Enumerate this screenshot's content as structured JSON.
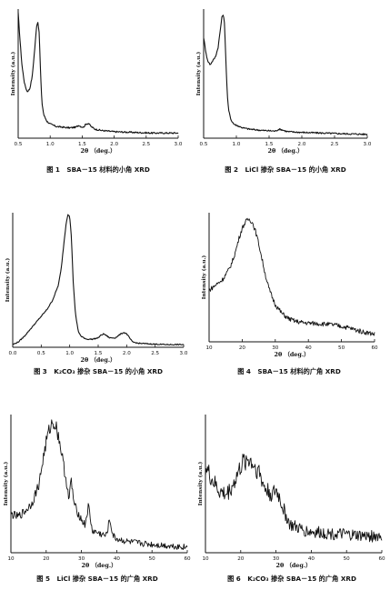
{
  "figures": [
    {
      "caption": "图 1   SBA－15 材料的小角 XRD",
      "chart_data": {
        "type": "line",
        "title": "",
        "xlabel": "2θ （deg.）",
        "ylabel": "Intensity (a.u.)",
        "xlim": [
          0.5,
          3.0
        ],
        "xticks": [
          "0.5",
          "1.0",
          "1.5",
          "2.0",
          "2.5",
          "3.0"
        ],
        "ylim": [
          0,
          1
        ],
        "grid": false,
        "series": [
          {
            "x": [
              0.5,
              0.53,
              0.56,
              0.6,
              0.64,
              0.68,
              0.72,
              0.76,
              0.79,
              0.81,
              0.83,
              0.85,
              0.87,
              0.9,
              0.95,
              1.0,
              1.1,
              1.2,
              1.3,
              1.4,
              1.45,
              1.48,
              1.52,
              1.56,
              1.6,
              1.64,
              1.7,
              1.8,
              2.0,
              2.3,
              2.6,
              3.0
            ],
            "y": [
              0.97,
              0.75,
              0.56,
              0.42,
              0.36,
              0.38,
              0.48,
              0.7,
              0.88,
              0.9,
              0.8,
              0.5,
              0.28,
              0.18,
              0.13,
              0.11,
              0.09,
              0.085,
              0.08,
              0.085,
              0.1,
              0.09,
              0.085,
              0.11,
              0.115,
              0.09,
              0.07,
              0.06,
              0.05,
              0.045,
              0.04,
              0.04
            ]
          }
        ]
      }
    },
    {
      "caption": "图 2   LiCl 掺杂 SBA－15 的小角 XRD",
      "chart_data": {
        "type": "line",
        "title": "",
        "xlabel": "2θ （deg.）",
        "ylabel": "Intensity (a.u.)",
        "xlim": [
          0.5,
          3.0
        ],
        "xticks": [
          "0.5",
          "1.0",
          "1.5",
          "2.0",
          "2.5",
          "3.0"
        ],
        "ylim": [
          0,
          1
        ],
        "grid": false,
        "series": [
          {
            "x": [
              0.5,
              0.53,
              0.56,
              0.6,
              0.64,
              0.68,
              0.72,
              0.75,
              0.78,
              0.8,
              0.82,
              0.84,
              0.86,
              0.88,
              0.92,
              0.96,
              1.0,
              1.1,
              1.2,
              1.4,
              1.6,
              1.65,
              1.7,
              1.75,
              1.8,
              2.0,
              2.3,
              2.6,
              3.0
            ],
            "y": [
              0.78,
              0.68,
              0.6,
              0.57,
              0.6,
              0.63,
              0.7,
              0.82,
              0.94,
              0.96,
              0.88,
              0.6,
              0.35,
              0.22,
              0.14,
              0.11,
              0.1,
              0.08,
              0.07,
              0.06,
              0.055,
              0.07,
              0.065,
              0.055,
              0.05,
              0.045,
              0.04,
              0.035,
              0.03
            ]
          }
        ]
      }
    },
    {
      "caption": "图 3   K₂CO₃ 掺杂 SBA－15 的小角 XRD",
      "chart_data": {
        "type": "line",
        "title": "",
        "xlabel": "2θ （deg.）",
        "ylabel": "Intensity (a.u.)",
        "xlim": [
          0.0,
          3.0
        ],
        "xticks": [
          "0.0",
          "0.5",
          "1.0",
          "1.5",
          "2.0",
          "2.5",
          "3.0"
        ],
        "ylim": [
          0,
          1
        ],
        "grid": false,
        "series": [
          {
            "x": [
              0.0,
              0.1,
              0.2,
              0.3,
              0.4,
              0.5,
              0.6,
              0.7,
              0.8,
              0.85,
              0.9,
              0.94,
              0.97,
              1.0,
              1.03,
              1.06,
              1.1,
              1.15,
              1.2,
              1.3,
              1.4,
              1.5,
              1.55,
              1.6,
              1.7,
              1.8,
              1.9,
              1.95,
              2.0,
              2.05,
              2.1,
              2.2,
              2.4,
              2.7,
              3.0
            ],
            "y": [
              0.02,
              0.04,
              0.08,
              0.13,
              0.18,
              0.23,
              0.28,
              0.35,
              0.46,
              0.58,
              0.78,
              0.93,
              0.99,
              0.97,
              0.82,
              0.5,
              0.25,
              0.12,
              0.08,
              0.06,
              0.06,
              0.07,
              0.09,
              0.1,
              0.07,
              0.07,
              0.1,
              0.11,
              0.1,
              0.07,
              0.04,
              0.03,
              0.025,
              0.02,
              0.02
            ]
          }
        ]
      }
    },
    {
      "caption": "图 4   SBA－15 材料的广角 XRD",
      "chart_data": {
        "type": "line",
        "title": "",
        "xlabel": "2θ （deg.）",
        "ylabel": "Intensity (a.u.)",
        "xlim": [
          10,
          60
        ],
        "xticks": [
          "10",
          "20",
          "30",
          "40",
          "50",
          "60"
        ],
        "ylim": [
          0,
          1
        ],
        "grid": false,
        "series": [
          {
            "x": [
              10,
              12,
              14,
              16,
              17,
              18,
              19,
              20,
              21,
              22,
              23,
              24,
              25,
              26,
              27,
              28,
              29,
              30,
              32,
              34,
              36,
              38,
              40,
              44,
              48,
              52,
              56,
              60
            ],
            "y": [
              0.4,
              0.44,
              0.48,
              0.56,
              0.62,
              0.7,
              0.8,
              0.88,
              0.93,
              0.95,
              0.93,
              0.86,
              0.76,
              0.64,
              0.52,
              0.42,
              0.35,
              0.29,
              0.22,
              0.18,
              0.16,
              0.15,
              0.145,
              0.14,
              0.13,
              0.11,
              0.08,
              0.06
            ]
          }
        ]
      }
    },
    {
      "caption": "图 5   LiCl 掺杂 SBA－15 的广角 XRD",
      "chart_data": {
        "type": "line",
        "title": "",
        "xlabel": "2θ （deg.）",
        "ylabel": "Intensity (a.u.)",
        "xlim": [
          10,
          60
        ],
        "xticks": [
          "10",
          "20",
          "30",
          "40",
          "50",
          "60"
        ],
        "ylim": [
          0,
          1
        ],
        "grid": false,
        "series": [
          {
            "x": [
              10,
              12,
              14,
              16,
              18,
              19,
              20,
              21,
              22,
              23,
              24,
              25,
              26,
              26.5,
              27,
              28,
              30,
              31,
              32,
              33,
              35,
              37,
              38,
              39,
              40,
              43,
              46,
              50,
              55,
              60
            ],
            "y": [
              0.28,
              0.26,
              0.3,
              0.36,
              0.5,
              0.66,
              0.8,
              0.9,
              0.95,
              0.9,
              0.78,
              0.62,
              0.48,
              0.36,
              0.54,
              0.34,
              0.24,
              0.2,
              0.34,
              0.16,
              0.14,
              0.12,
              0.24,
              0.12,
              0.1,
              0.08,
              0.07,
              0.06,
              0.05,
              0.04
            ]
          }
        ]
      }
    },
    {
      "caption": "图 6   K₂CO₃ 掺杂 SBA－15 的广角 XRD",
      "chart_data": {
        "type": "line",
        "title": "",
        "xlabel": "2θ （deg.）",
        "ylabel": "Intensity (a.u.)",
        "xlim": [
          10,
          60
        ],
        "xticks": [
          "10",
          "20",
          "30",
          "40",
          "50",
          "60"
        ],
        "ylim": [
          0,
          1
        ],
        "grid": false,
        "series": [
          {
            "x": [
              10,
              12,
              14,
              16,
              18,
              20,
              21,
              22,
              23,
              24,
              25,
              26,
              27,
              28,
              29,
              30,
              31,
              32,
              33,
              34,
              36,
              38,
              40,
              45,
              50,
              55,
              60
            ],
            "y": [
              0.62,
              0.52,
              0.44,
              0.42,
              0.5,
              0.62,
              0.66,
              0.68,
              0.66,
              0.62,
              0.6,
              0.52,
              0.46,
              0.44,
              0.42,
              0.45,
              0.4,
              0.32,
              0.26,
              0.2,
              0.18,
              0.16,
              0.15,
              0.14,
              0.13,
              0.12,
              0.12
            ]
          }
        ]
      }
    }
  ]
}
